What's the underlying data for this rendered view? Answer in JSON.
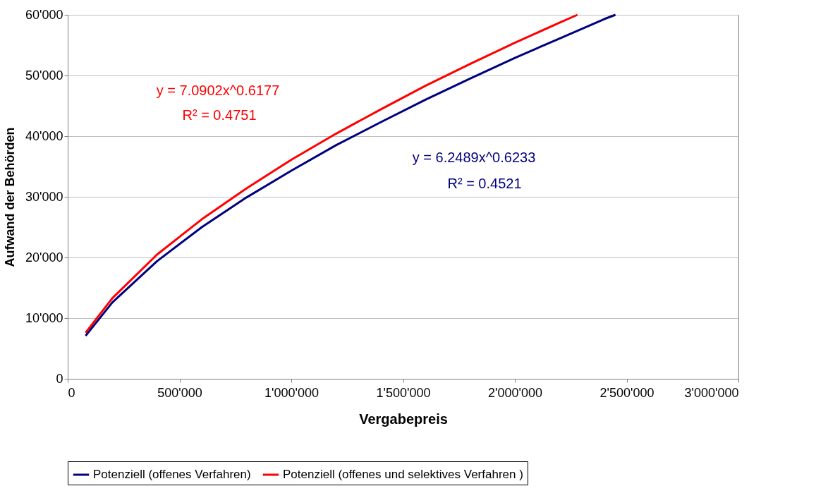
{
  "chart_data": {
    "type": "line",
    "xlabel": "Vergabepreis",
    "ylabel": "Aufwand der Behörden",
    "series": [
      {
        "name": "Potenziell (offenes Verfahren)",
        "color": "#000080",
        "x": [
          80000,
          200000,
          400000,
          600000,
          800000,
          1000000,
          1200000,
          1400000,
          1600000,
          1800000,
          2000000,
          2200000,
          2400000,
          2450000
        ],
        "values": [
          7100,
          12600,
          19400,
          25000,
          29900,
          34300,
          38500,
          42300,
          46000,
          49500,
          52900,
          56100,
          59300,
          60000
        ]
      },
      {
        "name": "Potenziell (offenes und selektives Verfahren )",
        "color": "#ff0000",
        "x": [
          80000,
          200000,
          400000,
          600000,
          800000,
          1000000,
          1200000,
          1400000,
          1600000,
          1800000,
          2000000,
          2200000,
          2280000
        ],
        "values": [
          7600,
          13300,
          20500,
          26300,
          31400,
          36100,
          40400,
          44400,
          48300,
          51900,
          55400,
          58700,
          60000
        ]
      }
    ],
    "annotations": [
      "y = 6.2489x^0.6233",
      "R² = 0.4521",
      "y = 7.0902x^0.6177",
      "R² = 0.4751"
    ],
    "xlim": [
      0,
      3000000
    ],
    "xticks": [
      0,
      {
        "value": 500000,
        "label": "500'000"
      },
      {
        "value": 1000000,
        "label": "1'000'000"
      },
      {
        "value": 1500000,
        "label": "1'500'000"
      },
      {
        "value": 2000000,
        "label": "2'000'000"
      },
      {
        "value": 2500000,
        "label": "2'500'000"
      },
      {
        "value": 3000000,
        "label": "3'000'000"
      }
    ],
    "ylim": [
      0,
      60000
    ],
    "yticks": [
      0,
      {
        "value": 10000,
        "label": "10'000"
      },
      {
        "value": 20000,
        "label": "20'000"
      },
      {
        "value": 30000,
        "label": "30'000"
      },
      {
        "value": 40000,
        "label": "40'000"
      },
      {
        "value": 50000,
        "label": "50'000"
      },
      {
        "value": 60000,
        "label": "60'000"
      }
    ],
    "grid": "y",
    "legend": "bottom",
    "line_style": "solid"
  }
}
